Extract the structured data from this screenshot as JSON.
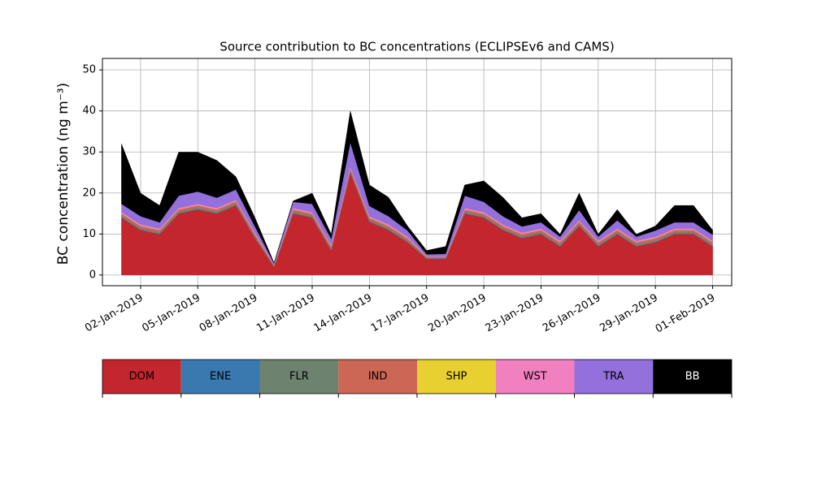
{
  "chart_data": {
    "type": "stacked_area",
    "title": "Source contribution to BC concentrations (ECLIPSEv6 and CAMS)",
    "ylabel": "BC concentration (ng m⁻³)",
    "x": [
      "2019-01-01",
      "2019-01-02",
      "2019-01-03",
      "2019-01-04",
      "2019-01-05",
      "2019-01-06",
      "2019-01-07",
      "2019-01-08",
      "2019-01-09",
      "2019-01-10",
      "2019-01-11",
      "2019-01-12",
      "2019-01-13",
      "2019-01-14",
      "2019-01-15",
      "2019-01-16",
      "2019-01-17",
      "2019-01-18",
      "2019-01-19",
      "2019-01-20",
      "2019-01-21",
      "2019-01-22",
      "2019-01-23",
      "2019-01-24",
      "2019-01-25",
      "2019-01-26",
      "2019-01-27",
      "2019-01-28",
      "2019-01-29",
      "2019-01-30",
      "2019-01-31",
      "2019-02-01"
    ],
    "series": [
      {
        "name": "DOM",
        "color": "#c4262e",
        "values": [
          14,
          11,
          10,
          15,
          16,
          15,
          17,
          9,
          2,
          15,
          14,
          6,
          25,
          13,
          11,
          8,
          4,
          4,
          15,
          14,
          11,
          9,
          10,
          7,
          12,
          7,
          10,
          7,
          8,
          10,
          10,
          7
        ]
      },
      {
        "name": "ENE",
        "color": "#3a78b0",
        "values": [
          0.1,
          0.1,
          0.1,
          0.1,
          0.1,
          0.1,
          0.1,
          0.1,
          0.05,
          0.1,
          0.1,
          0.1,
          0.1,
          0.1,
          0.1,
          0.1,
          0.05,
          0.05,
          0.1,
          0.1,
          0.1,
          0.1,
          0.1,
          0.1,
          0.1,
          0.1,
          0.1,
          0.1,
          0.1,
          0.1,
          0.1,
          0.1
        ]
      },
      {
        "name": "FLR",
        "color": "#6e8270",
        "values": [
          0.4,
          0.4,
          0.4,
          0.4,
          0.4,
          0.4,
          0.4,
          0.4,
          0.2,
          0.4,
          0.4,
          0.4,
          0.4,
          0.4,
          0.4,
          0.4,
          0.2,
          0.2,
          0.4,
          0.4,
          0.4,
          0.4,
          0.4,
          0.4,
          0.4,
          0.4,
          0.4,
          0.4,
          0.4,
          0.4,
          0.4,
          0.4
        ]
      },
      {
        "name": "IND",
        "color": "#cc6655",
        "values": [
          0.5,
          0.5,
          0.5,
          0.5,
          0.5,
          0.5,
          0.5,
          0.5,
          0.2,
          0.5,
          0.5,
          0.5,
          0.5,
          0.5,
          0.5,
          0.5,
          0.2,
          0.2,
          0.5,
          0.5,
          0.5,
          0.5,
          0.5,
          0.5,
          0.5,
          0.5,
          0.5,
          0.5,
          0.5,
          0.5,
          0.5,
          0.5
        ]
      },
      {
        "name": "SHP",
        "color": "#e8d030",
        "values": [
          0.05,
          0.05,
          0.05,
          0.05,
          0.05,
          0.05,
          0.05,
          0.05,
          0.02,
          0.05,
          0.05,
          0.05,
          0.05,
          0.05,
          0.05,
          0.05,
          0.02,
          0.02,
          0.05,
          0.05,
          0.05,
          0.05,
          0.05,
          0.05,
          0.05,
          0.05,
          0.05,
          0.05,
          0.05,
          0.05,
          0.05,
          0.05
        ]
      },
      {
        "name": "WST",
        "color": "#f080c0",
        "values": [
          0.3,
          0.3,
          0.3,
          0.3,
          0.3,
          0.3,
          0.3,
          0.3,
          0.1,
          0.3,
          0.3,
          0.3,
          0.3,
          0.3,
          0.3,
          0.3,
          0.1,
          0.1,
          0.3,
          0.3,
          0.3,
          0.3,
          0.3,
          0.3,
          0.3,
          0.3,
          0.3,
          0.3,
          0.3,
          0.3,
          0.3,
          0.3
        ]
      },
      {
        "name": "TRA",
        "color": "#9370db",
        "values": [
          2,
          2,
          1.5,
          3,
          3,
          2.5,
          2.5,
          1.5,
          0.3,
          1.5,
          2,
          1.5,
          6,
          2.5,
          2,
          1.5,
          0.5,
          0.6,
          3,
          2.5,
          2,
          1.5,
          1.5,
          1,
          2.5,
          1,
          2,
          1,
          1.5,
          1.5,
          1.5,
          1.5
        ]
      },
      {
        "name": "BB",
        "color": "#000000",
        "values": [
          14.6,
          5.6,
          4.1,
          10.6,
          9.6,
          9.1,
          3.1,
          2.1,
          0.1,
          0.2,
          2.6,
          1.1,
          7.6,
          5.1,
          4.6,
          1.1,
          0.9,
          1.8,
          2.6,
          5.1,
          4.6,
          2.1,
          2.1,
          0.6,
          4.1,
          0.6,
          2.6,
          0.6,
          1.1,
          4.1,
          4.1,
          1.1
        ]
      }
    ],
    "xlim": [
      "2018-12-31",
      "2019-02-02"
    ],
    "xticks": [
      {
        "value": "2019-01-02",
        "label": "02-Jan-2019"
      },
      {
        "value": "2019-01-05",
        "label": "05-Jan-2019"
      },
      {
        "value": "2019-01-08",
        "label": "08-Jan-2019"
      },
      {
        "value": "2019-01-11",
        "label": "11-Jan-2019"
      },
      {
        "value": "2019-01-14",
        "label": "14-Jan-2019"
      },
      {
        "value": "2019-01-17",
        "label": "17-Jan-2019"
      },
      {
        "value": "2019-01-20",
        "label": "20-Jan-2019"
      },
      {
        "value": "2019-01-23",
        "label": "23-Jan-2019"
      },
      {
        "value": "2019-01-26",
        "label": "26-Jan-2019"
      },
      {
        "value": "2019-01-29",
        "label": "29-Jan-2019"
      },
      {
        "value": "2019-02-01",
        "label": "01-Feb-2019"
      }
    ],
    "ylim": [
      -2.6,
      52.8
    ],
    "yticks": [
      0,
      10,
      20,
      30,
      40,
      50
    ],
    "grid": true,
    "legend": "bottom"
  }
}
